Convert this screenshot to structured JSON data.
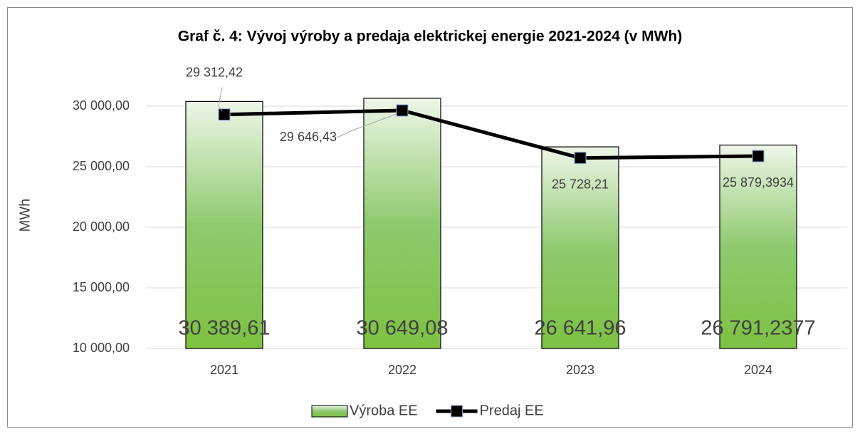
{
  "chart_data": {
    "type": "combo",
    "title": "Graf č. 4: Vývoj výroby a predaja elektrickej energie 2021-2024 (v MWh)",
    "y_label": "MWh",
    "categories": [
      "2021",
      "2022",
      "2023",
      "2024"
    ],
    "series": [
      {
        "name": "Výroba EE",
        "type": "bar",
        "color": "#7dc142",
        "values": [
          30389.61,
          30649.08,
          26641.96,
          26791.2377
        ],
        "value_labels": [
          "30 389,61",
          "30 649,08",
          "26 641,96",
          "26 791,2377"
        ]
      },
      {
        "name": "Predaj EE",
        "type": "line",
        "color": "#000000",
        "values": [
          29312.42,
          29646.43,
          25728.21,
          25879.3934
        ],
        "value_labels": [
          "29 312,42",
          "29 646,43",
          "25 728,21",
          "25 879,3934"
        ]
      }
    ],
    "ylim": [
      10000,
      32000
    ],
    "yticks": [
      {
        "value": 10000,
        "label": "10 000,00"
      },
      {
        "value": 15000,
        "label": "15 000,00"
      },
      {
        "value": 20000,
        "label": "20 000,00"
      },
      {
        "value": 25000,
        "label": "25 000,00"
      },
      {
        "value": 30000,
        "label": "30 000,00"
      }
    ],
    "grid": true,
    "legend": "bottom"
  }
}
